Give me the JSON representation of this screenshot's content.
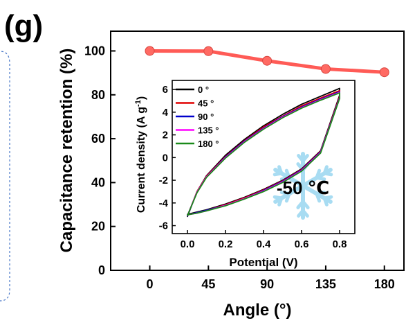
{
  "panel_label": "(g)",
  "colors": {
    "main_line": "#ff5b56",
    "main_marker": "#ff6a63",
    "snowflake": "#a8dcf2",
    "inset_label": "#1f2f7a"
  },
  "chart_data": [
    {
      "type": "line",
      "role": "main",
      "xlabel": "Angle (°)",
      "ylabel": "Capacitance retention (%)",
      "xlim": [
        -30,
        195
      ],
      "ylim": [
        0,
        109
      ],
      "xticks": [
        0,
        45,
        90,
        135,
        180
      ],
      "xtick_labels": [
        "0",
        "45",
        "90",
        "135",
        "180"
      ],
      "yticks": [
        0,
        20,
        40,
        60,
        80,
        100
      ],
      "ytick_labels": [
        "0",
        "20",
        "40",
        "60",
        "80",
        "100"
      ],
      "x": [
        0,
        45,
        90,
        135,
        180
      ],
      "values": [
        100.0,
        99.9,
        95.5,
        91.8,
        90.3
      ],
      "grid": false
    },
    {
      "type": "line",
      "role": "inset",
      "xlabel": "Potential (V)",
      "ylabel": "Current density (A g-1)",
      "ylabel_main": "Current density (A g",
      "ylabel_sup": "-1",
      "ylabel_close": ")",
      "annotation": "-50 ℃",
      "xlim": [
        -0.08,
        0.88
      ],
      "ylim": [
        -6.7,
        6.8
      ],
      "xticks": [
        0.0,
        0.2,
        0.4,
        0.6,
        0.8
      ],
      "xtick_labels": [
        "0.0",
        "0.2",
        "0.4",
        "0.6",
        "0.8"
      ],
      "yticks": [
        -6,
        -4,
        -2,
        0,
        2,
        4,
        6
      ],
      "ytick_labels": [
        "-6",
        "-4",
        "-2",
        "0",
        "2",
        "4",
        "6"
      ],
      "legend_position": "top-left",
      "grid": false,
      "series": [
        {
          "name": "0 °",
          "color": "#000000",
          "x": [
            0.0,
            0.05,
            0.1,
            0.2,
            0.3,
            0.4,
            0.5,
            0.6,
            0.7,
            0.8,
            0.8,
            0.7,
            0.6,
            0.5,
            0.4,
            0.3,
            0.2,
            0.1,
            0.05,
            0.0,
            0.0
          ],
          "y": [
            -5.2,
            -3.0,
            -1.6,
            0.2,
            1.6,
            2.8,
            3.8,
            4.7,
            5.4,
            6.1,
            5.5,
            0.6,
            -1.0,
            -2.0,
            -2.8,
            -3.5,
            -4.1,
            -4.6,
            -4.8,
            -5.0,
            -5.2
          ]
        },
        {
          "name": "45 °",
          "color": "#e00000",
          "x": [
            0.0,
            0.05,
            0.1,
            0.2,
            0.3,
            0.4,
            0.5,
            0.6,
            0.7,
            0.8,
            0.8,
            0.7,
            0.6,
            0.5,
            0.4,
            0.3,
            0.2,
            0.1,
            0.05,
            0.0,
            0.0
          ],
          "y": [
            -5.15,
            -3.0,
            -1.65,
            0.1,
            1.5,
            2.7,
            3.65,
            4.55,
            5.25,
            5.9,
            5.4,
            0.55,
            -1.05,
            -2.05,
            -2.85,
            -3.55,
            -4.15,
            -4.65,
            -4.85,
            -5.05,
            -5.15
          ]
        },
        {
          "name": "90 °",
          "color": "#0000cc",
          "x": [
            0.0,
            0.05,
            0.1,
            0.2,
            0.3,
            0.4,
            0.5,
            0.6,
            0.7,
            0.8,
            0.8,
            0.7,
            0.6,
            0.5,
            0.4,
            0.3,
            0.2,
            0.1,
            0.05,
            0.0,
            0.0
          ],
          "y": [
            -5.15,
            -3.05,
            -1.7,
            0.05,
            1.45,
            2.6,
            3.6,
            4.45,
            5.15,
            5.8,
            5.3,
            0.5,
            -1.1,
            -2.1,
            -2.9,
            -3.6,
            -4.2,
            -4.65,
            -4.85,
            -5.05,
            -5.15
          ]
        },
        {
          "name": "135 °",
          "color": "#ff00ff",
          "x": [
            0.0,
            0.05,
            0.1,
            0.2,
            0.3,
            0.4,
            0.5,
            0.6,
            0.7,
            0.8,
            0.8,
            0.7,
            0.6,
            0.5,
            0.4,
            0.3,
            0.2,
            0.1,
            0.05,
            0.0,
            0.0
          ],
          "y": [
            -5.1,
            -3.05,
            -1.7,
            0.0,
            1.4,
            2.55,
            3.55,
            4.4,
            5.1,
            5.75,
            5.25,
            0.45,
            -1.15,
            -2.15,
            -2.95,
            -3.6,
            -4.2,
            -4.7,
            -4.9,
            -5.05,
            -5.1
          ]
        },
        {
          "name": "180 °",
          "color": "#1a8a1a",
          "x": [
            0.0,
            0.05,
            0.1,
            0.2,
            0.3,
            0.4,
            0.5,
            0.6,
            0.7,
            0.8,
            0.8,
            0.7,
            0.6,
            0.5,
            0.4,
            0.3,
            0.2,
            0.1,
            0.05,
            0.0,
            0.0
          ],
          "y": [
            -5.1,
            -3.1,
            -1.75,
            -0.05,
            1.35,
            2.5,
            3.5,
            4.35,
            5.05,
            5.7,
            5.2,
            0.4,
            -1.2,
            -2.2,
            -3.0,
            -3.65,
            -4.25,
            -4.7,
            -4.9,
            -5.05,
            -5.1
          ]
        }
      ]
    }
  ]
}
